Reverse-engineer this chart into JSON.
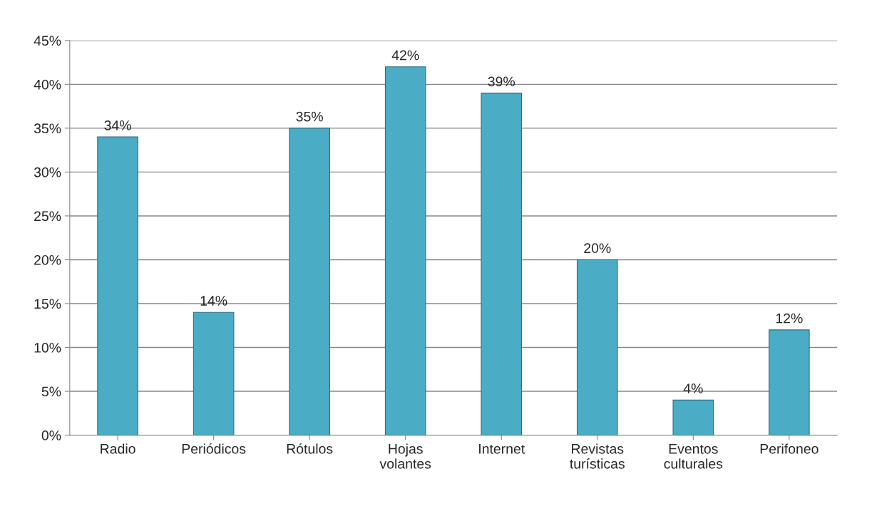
{
  "chart_data": {
    "type": "bar",
    "categories": [
      "Radio",
      "Periódicos",
      "Rótulos",
      "Hojas\nvolantes",
      "Internet",
      "Revistas\nturísticas",
      "Eventos\nculturales",
      "Perifoneo"
    ],
    "values": [
      34,
      14,
      35,
      42,
      39,
      20,
      4,
      12
    ],
    "value_labels": [
      "34%",
      "14%",
      "35%",
      "42%",
      "39%",
      "20%",
      "4%",
      "12%"
    ],
    "color": "#4bacc6",
    "ylim": [
      0,
      45
    ],
    "yticks": [
      {
        "value": 0,
        "label": "0%"
      },
      {
        "value": 5,
        "label": "5%"
      },
      {
        "value": 10,
        "label": "10%"
      },
      {
        "value": 15,
        "label": "15%"
      },
      {
        "value": 20,
        "label": "20%"
      },
      {
        "value": 25,
        "label": "25%"
      },
      {
        "value": 30,
        "label": "30%"
      },
      {
        "value": 35,
        "label": "35%"
      },
      {
        "value": 40,
        "label": "40%"
      },
      {
        "value": 45,
        "label": "45%"
      }
    ],
    "grid": "y"
  }
}
